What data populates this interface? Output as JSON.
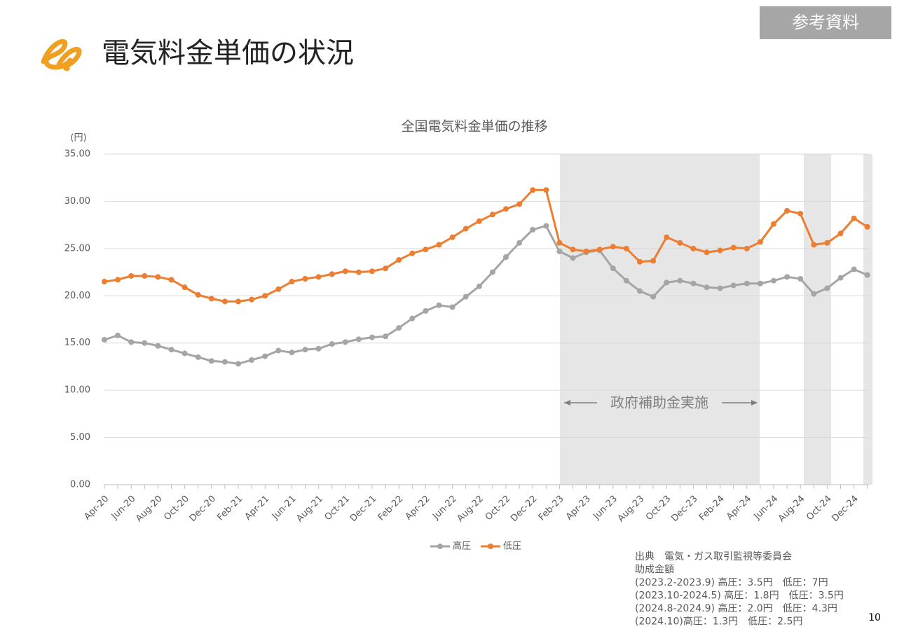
{
  "header": {
    "badge": "参考資料",
    "title": "電気料金単価の状況",
    "page_number": "10"
  },
  "chart_data": {
    "type": "line",
    "title": "全国電気料金単価の推移",
    "y_unit": "(円)",
    "categories": [
      "Apr-20",
      null,
      "Jun-20",
      null,
      "Aug-20",
      null,
      "Oct-20",
      null,
      "Dec-20",
      null,
      "Feb-21",
      null,
      "Apr-21",
      null,
      "Jun-21",
      null,
      "Aug-21",
      null,
      "Oct-21",
      null,
      "Dec-21",
      null,
      "Feb-22",
      null,
      "Apr-22",
      null,
      "Jun-22",
      null,
      "Aug-22",
      null,
      "Oct-22",
      null,
      "Dec-22",
      null,
      "Feb-23",
      null,
      "Apr-23",
      null,
      "Jun-23",
      null,
      "Aug-23",
      null,
      "Oct-23",
      null,
      "Dec-23",
      null,
      "Feb-24",
      null,
      "Apr-24",
      null,
      "Jun-24",
      null,
      "Aug-24",
      null,
      "Oct-24",
      null,
      "Dec-24",
      null
    ],
    "series": [
      {
        "name": "高圧",
        "color": "#a5a5a5",
        "values": [
          15.35,
          15.8,
          15.1,
          15.0,
          14.7,
          14.3,
          13.9,
          13.5,
          13.1,
          13.0,
          12.8,
          13.2,
          13.6,
          14.2,
          14.0,
          14.3,
          14.4,
          14.9,
          15.1,
          15.4,
          15.6,
          15.7,
          16.6,
          17.6,
          18.4,
          19.0,
          18.8,
          19.9,
          21.0,
          22.5,
          24.1,
          25.6,
          27.0,
          27.4,
          24.7,
          24.0,
          24.6,
          24.8,
          22.9,
          21.6,
          20.5,
          19.9,
          21.4,
          21.6,
          21.3,
          20.9,
          20.8,
          21.1,
          21.3,
          21.3,
          21.6,
          22.0,
          21.8,
          20.2,
          20.8,
          21.9,
          22.8,
          22.2
        ]
      },
      {
        "name": "低圧",
        "color": "#ed7d31",
        "values": [
          21.5,
          21.7,
          22.1,
          22.1,
          22.0,
          21.7,
          20.9,
          20.1,
          19.7,
          19.4,
          19.4,
          19.6,
          20.0,
          20.7,
          21.5,
          21.8,
          22.0,
          22.3,
          22.6,
          22.5,
          22.6,
          22.9,
          23.8,
          24.5,
          24.9,
          25.4,
          26.2,
          27.1,
          27.9,
          28.6,
          29.2,
          29.7,
          31.2,
          31.2,
          25.6,
          24.9,
          24.7,
          24.9,
          25.2,
          25.0,
          23.6,
          23.7,
          26.2,
          25.6,
          25.0,
          24.6,
          24.8,
          25.1,
          25.0,
          25.7,
          27.6,
          29.0,
          28.7,
          25.4,
          25.6,
          26.6,
          28.2,
          27.3
        ]
      }
    ],
    "ylim": [
      0,
      35
    ],
    "yticks": [
      {
        "value": 0,
        "label": "0.00"
      },
      {
        "value": 5,
        "label": "5.00"
      },
      {
        "value": 10,
        "label": "10.00"
      },
      {
        "value": 15,
        "label": "15.00"
      },
      {
        "value": 20,
        "label": "20.00"
      },
      {
        "value": 25,
        "label": "25.00"
      },
      {
        "value": 30,
        "label": "30.00"
      },
      {
        "value": 35,
        "label": "35.00"
      }
    ],
    "grid": true,
    "legend": "bottom",
    "annotation": "政府補助金実施"
  },
  "notes": [
    "出典　電気・ガス取引監視等委員会",
    "助成金額",
    "(2023.2-2023.9) 高圧：3.5円　低圧：7円",
    "(2023.10-2024.5) 高圧：1.8円　低圧：3.5円",
    "(2024.8-2024.9) 高圧：2.0円　低圧：4.3円",
    "(2024.10)高圧：1.3円　低圧：2.5円"
  ]
}
